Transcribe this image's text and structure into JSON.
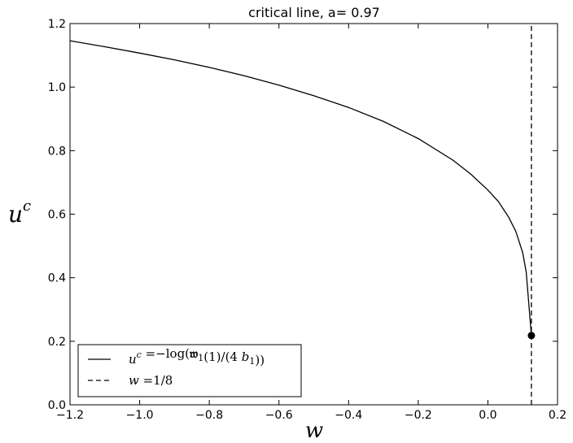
{
  "chart_data": {
    "type": "line",
    "title": "critical line, a= 0.97",
    "xlabel": "w",
    "ylabel_base": "u",
    "ylabel_sup": "c",
    "xlim": [
      -1.2,
      0.2
    ],
    "ylim": [
      0.0,
      1.2
    ],
    "xticks": [
      -1.2,
      -1.0,
      -0.8,
      -0.6,
      -0.4,
      -0.2,
      0.0,
      0.2
    ],
    "xtick_labels": [
      "−1.2",
      "−1.0",
      "−0.8",
      "−0.6",
      "−0.4",
      "−0.2",
      "0.0",
      "0.2"
    ],
    "yticks": [
      0.0,
      0.2,
      0.4,
      0.6,
      0.8,
      1.0,
      1.2
    ],
    "ytick_labels": [
      "0.0",
      "0.2",
      "0.4",
      "0.6",
      "0.8",
      "1.0",
      "1.2"
    ],
    "grid": false,
    "legend_position": "bottom-left",
    "series": [
      {
        "name": "u^c = −log(𝔴₁(1)/(4 b₁))",
        "style": "solid",
        "color": "#000000",
        "x": [
          -1.2,
          -1.1,
          -1.0,
          -0.9,
          -0.8,
          -0.7,
          -0.6,
          -0.5,
          -0.4,
          -0.3,
          -0.2,
          -0.1,
          -0.05,
          0.0,
          0.03,
          0.06,
          0.08,
          0.1,
          0.11,
          0.125
        ],
        "y": [
          1.146,
          1.127,
          1.107,
          1.086,
          1.062,
          1.036,
          1.006,
          0.973,
          0.936,
          0.892,
          0.838,
          0.77,
          0.727,
          0.676,
          0.64,
          0.59,
          0.546,
          0.479,
          0.418,
          0.218
        ]
      },
      {
        "name": "w = 1/8",
        "style": "dashed",
        "color": "#000000",
        "x": [
          0.125,
          0.125
        ],
        "y": [
          0.0,
          1.2
        ]
      }
    ],
    "marker": {
      "x": 0.125,
      "y": 0.218,
      "color": "#000000"
    },
    "legend": [
      {
        "style": "solid",
        "parts": [
          {
            "t": "u",
            "italic": true
          },
          {
            "t": "c",
            "sup": true,
            "italic": true
          },
          {
            "t": " =−log("
          },
          {
            "t": "𝔴",
            "bold": true
          },
          {
            "t": "1",
            "sub": true
          },
          {
            "t": "(1)/(4 "
          },
          {
            "t": "b",
            "italic": true
          },
          {
            "t": "1",
            "sub": true
          },
          {
            "t": "))"
          }
        ]
      },
      {
        "style": "dashed",
        "parts": [
          {
            "t": "w",
            "italic": true
          },
          {
            "t": " =1/8"
          }
        ]
      }
    ]
  }
}
